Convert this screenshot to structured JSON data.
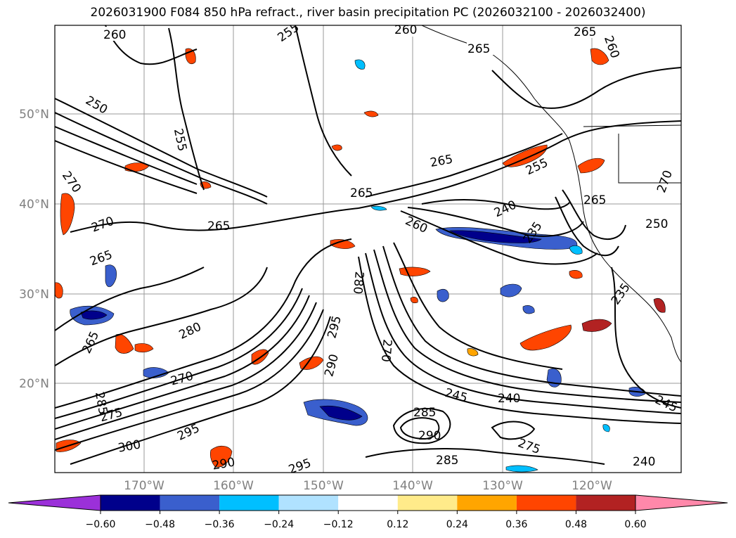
{
  "title": "2026031900 F084 850 hPa refract., river basin precipitation PC (2026032100 - 2026032400)",
  "map": {
    "lat_labels": [
      "50°N",
      "40°N",
      "30°N",
      "20°N"
    ],
    "lon_labels": [
      "170°W",
      "160°W",
      "150°W",
      "140°W",
      "130°W",
      "120°W"
    ],
    "contour_labels": [
      "260",
      "260",
      "265",
      "265",
      "260",
      "255",
      "250",
      "255",
      "270",
      "270",
      "265",
      "265",
      "265",
      "265",
      "255",
      "240",
      "235",
      "265",
      "250",
      "270",
      "260",
      "280",
      "265",
      "270",
      "280",
      "295",
      "290",
      "270",
      "285",
      "275",
      "295",
      "300",
      "290",
      "295",
      "285",
      "290",
      "245",
      "240",
      "275",
      "245",
      "285",
      "235",
      "240"
    ]
  },
  "colorbar": {
    "ticks": [
      "−0.60",
      "−0.48",
      "−0.36",
      "−0.24",
      "−0.12",
      "0.12",
      "0.24",
      "0.36",
      "0.48",
      "0.60"
    ],
    "colors": [
      "#9b30d9",
      "#00008b",
      "#3a5fcd",
      "#00bfff",
      "#b0e2ff",
      "#ffffff",
      "#ffeb8a",
      "#ffa500",
      "#ff4500",
      "#b22222",
      "#ff88aa"
    ]
  }
}
